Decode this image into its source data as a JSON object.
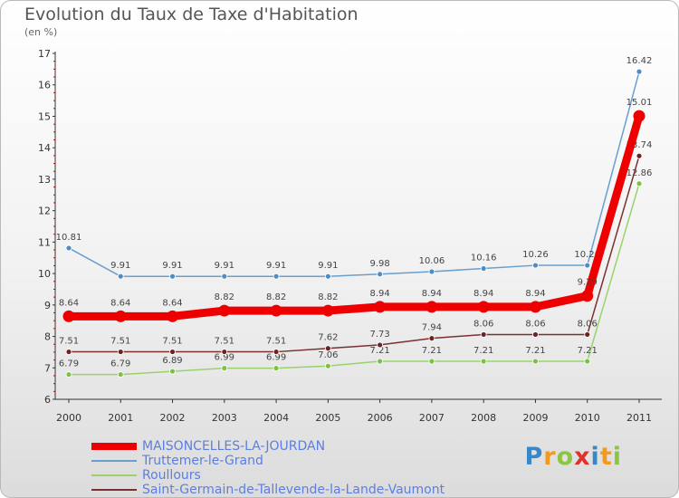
{
  "chart_data": {
    "type": "line",
    "title": "Evolution du Taux de Taxe d'Habitation",
    "ylabel": "(en %)",
    "categories": [
      "2000",
      "2001",
      "2002",
      "2003",
      "2004",
      "2005",
      "2006",
      "2007",
      "2008",
      "2009",
      "2010",
      "2011"
    ],
    "ylim": [
      6,
      17
    ],
    "yticks": [
      "6",
      "7",
      "8",
      "9",
      "10",
      "11",
      "12",
      "13",
      "14",
      "15",
      "16",
      "17"
    ],
    "series": [
      {
        "name": "Truttemer-le-Grand",
        "color": "#6a9ecf",
        "marker": "#4e8cc4",
        "values": [
          10.81,
          9.91,
          9.91,
          9.91,
          9.91,
          9.91,
          9.98,
          10.06,
          10.16,
          10.26,
          10.26,
          16.42
        ],
        "labels": [
          "10.81",
          "9.91",
          "9.91",
          "9.91",
          "9.91",
          "9.91",
          "9.98",
          "10.06",
          "10.16",
          "10.26",
          "10.26",
          "16.42"
        ]
      },
      {
        "name": "Roullours",
        "color": "#9ad26a",
        "marker": "#7cc044",
        "values": [
          6.79,
          6.79,
          6.89,
          6.99,
          6.99,
          7.06,
          7.21,
          7.21,
          7.21,
          7.21,
          7.21,
          12.86
        ],
        "labels": [
          "6.79",
          "6.79",
          "6.89",
          "6.99",
          "6.99",
          "7.06",
          "7.21",
          "7.21",
          "7.21",
          "7.21",
          "7.21",
          "12.86"
        ]
      },
      {
        "name": "Saint-Germain-de-Tallevende-la-Lande-Vaumont",
        "color": "#7a3030",
        "marker": "#6b2424",
        "values": [
          7.51,
          7.51,
          7.51,
          7.51,
          7.51,
          7.62,
          7.73,
          7.94,
          8.06,
          8.06,
          8.06,
          13.74
        ],
        "labels": [
          "7.51",
          "7.51",
          "7.51",
          "7.51",
          "7.51",
          "7.62",
          "7.73",
          "7.94",
          "8.06",
          "8.06",
          "8.06",
          "13.74"
        ]
      },
      {
        "name": "MAISONCELLES-LA-JOURDAN",
        "color": "#ee0000",
        "marker": "#ee0000",
        "values": [
          8.64,
          8.64,
          8.64,
          8.82,
          8.82,
          8.82,
          8.94,
          8.94,
          8.94,
          8.94,
          9.29,
          15.01
        ],
        "labels": [
          "8.64",
          "8.64",
          "8.64",
          "8.82",
          "8.82",
          "8.82",
          "8.94",
          "8.94",
          "8.94",
          "8.94",
          "9.29",
          "15.01"
        ]
      }
    ]
  },
  "legend": {
    "items": [
      {
        "label": "MAISONCELLES-LA-JOURDAN",
        "color": "#ee0000",
        "text_color": "#5b7fe0"
      },
      {
        "label": "Truttemer-le-Grand",
        "color": "#6a9ecf",
        "text_color": "#5b7fe0"
      },
      {
        "label": "Roullours",
        "color": "#9ad26a",
        "text_color": "#5b7fe0"
      },
      {
        "label": "Saint-Germain-de-Tallevende-la-Lande-Vaumont",
        "color": "#7a3030",
        "text_color": "#5b7fe0"
      }
    ]
  },
  "logo": {
    "letters": [
      "P",
      "r",
      "o",
      "x",
      "i",
      "t",
      "i"
    ],
    "colors": [
      "#3a87c8",
      "#f29a1d",
      "#8cc63f",
      "#e0312b",
      "#3a87c8",
      "#f29a1d",
      "#8cc63f"
    ]
  }
}
